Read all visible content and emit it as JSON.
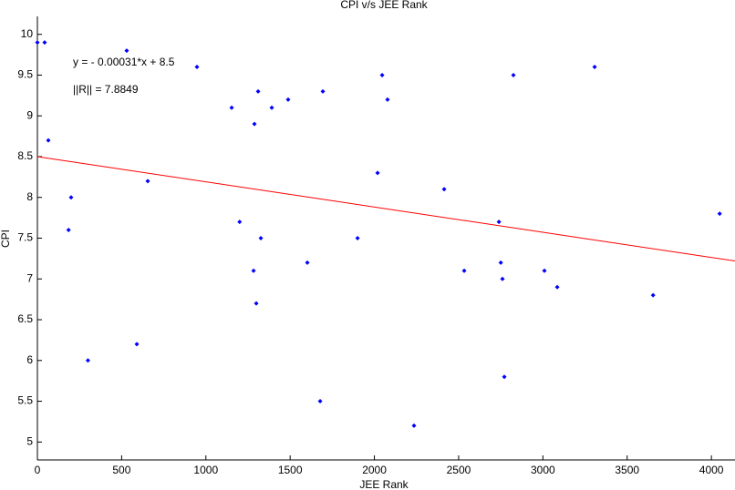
{
  "chart_data": {
    "type": "scatter",
    "title": "CPI v/s JEE Rank",
    "xlabel": "JEE Rank",
    "ylabel": "CPI",
    "annotations": [
      "y = - 0.00031*x + 8.5",
      "||R|| = 7.8849"
    ],
    "xlim": [
      0,
      4140
    ],
    "ylim": [
      4.78,
      10.22
    ],
    "xticks": [
      0,
      500,
      1000,
      1500,
      2000,
      2500,
      3000,
      3500,
      4000
    ],
    "yticks": [
      5,
      5.5,
      6,
      6.5,
      7,
      7.5,
      8,
      8.5,
      9,
      9.5,
      10
    ],
    "series": [
      {
        "color": "#0000ff",
        "x": [
          0,
          43,
          65,
          200,
          185,
          300,
          530,
          590,
          655,
          947,
          1153,
          1200,
          1288,
          1310,
          1283,
          1299,
          1326,
          1391,
          1488,
          1602,
          1678,
          1694,
          1900,
          2019,
          2046,
          2078,
          2235,
          2414,
          2533,
          2739,
          2750,
          2760,
          2771,
          2825,
          3009,
          3085,
          3307,
          3654,
          4049
        ],
        "values": [
          9.9,
          9.9,
          8.7,
          8.0,
          7.6,
          6.0,
          9.8,
          6.2,
          8.2,
          9.6,
          9.1,
          7.7,
          8.9,
          9.3,
          7.1,
          6.7,
          7.5,
          9.1,
          9.2,
          7.2,
          5.5,
          9.3,
          7.5,
          8.3,
          9.5,
          9.2,
          5.2,
          8.1,
          7.1,
          7.7,
          7.2,
          7.0,
          5.8,
          9.5,
          7.1,
          6.9,
          9.6,
          6.8,
          7.8
        ]
      },
      {
        "type": "line",
        "color": "#ff0000",
        "x": [
          0,
          4140
        ],
        "values": [
          8.5,
          7.22
        ]
      }
    ]
  }
}
